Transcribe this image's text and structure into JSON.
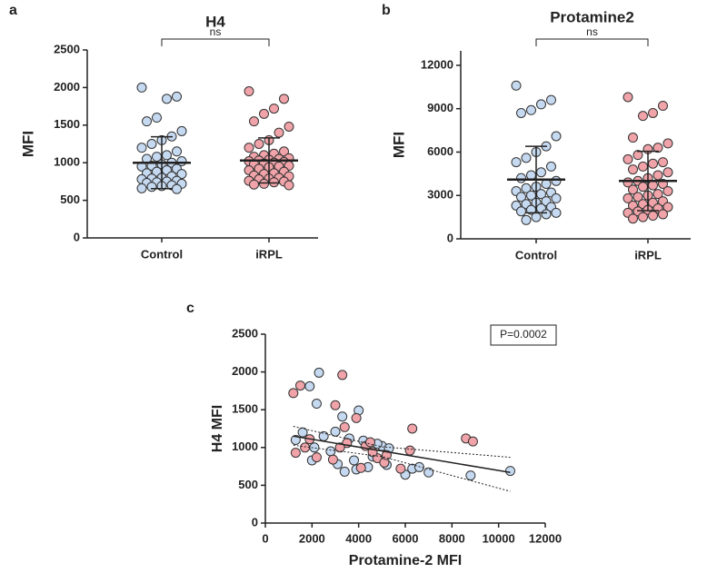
{
  "chart_data": [
    {
      "type": "dotplot",
      "panel": "a",
      "title": "H4",
      "ylabel": "MFI",
      "annotation": "ns",
      "categories": [
        "Control",
        "iRPL"
      ],
      "groups": [
        {
          "color": "#c5d9f1",
          "mean": 1000,
          "sd": 345,
          "values": [
            2000,
            1880,
            1850,
            1600,
            1550,
            1420,
            1350,
            1300,
            1250,
            1200,
            1150,
            1100,
            1080,
            1050,
            1020,
            1000,
            980,
            960,
            950,
            920,
            900,
            880,
            860,
            850,
            820,
            800,
            790,
            780,
            760,
            750,
            740,
            730,
            720,
            700,
            690,
            680,
            660,
            650
          ]
        },
        {
          "color": "#f0a3a8",
          "mean": 1030,
          "sd": 300,
          "values": [
            1950,
            1850,
            1720,
            1650,
            1550,
            1480,
            1400,
            1300,
            1250,
            1200,
            1150,
            1120,
            1100,
            1080,
            1060,
            1050,
            1040,
            1030,
            1020,
            1010,
            1000,
            990,
            980,
            960,
            950,
            940,
            920,
            900,
            880,
            860,
            850,
            830,
            820,
            800,
            790,
            780,
            760,
            750,
            740,
            720,
            710,
            700
          ]
        }
      ],
      "ylim": [
        0,
        2500
      ],
      "yticks": [
        0,
        500,
        1000,
        1500,
        2000,
        2500
      ]
    },
    {
      "type": "dotplot",
      "panel": "b",
      "title": "Protamine2",
      "ylabel": "MFI",
      "annotation": "ns",
      "categories": [
        "Control",
        "iRPL"
      ],
      "groups": [
        {
          "color": "#c5d9f1",
          "mean": 4100,
          "sd": 2300,
          "values": [
            10600,
            9600,
            9300,
            8900,
            8700,
            7100,
            6400,
            6000,
            5600,
            5300,
            5000,
            4600,
            4400,
            4200,
            4000,
            3800,
            3600,
            3500,
            3300,
            3200,
            3100,
            3000,
            2900,
            2800,
            2600,
            2500,
            2400,
            2300,
            2200,
            2100,
            2000,
            1900,
            1800,
            1700,
            1500,
            1300
          ]
        },
        {
          "color": "#f0a3a8",
          "mean": 4000,
          "sd": 2050,
          "values": [
            9800,
            9200,
            8700,
            8500,
            7000,
            6600,
            6300,
            6200,
            5800,
            5500,
            5300,
            5200,
            5000,
            4800,
            4600,
            4400,
            4200,
            4000,
            3900,
            3800,
            3700,
            3600,
            3400,
            3300,
            3100,
            3000,
            2900,
            2800,
            2600,
            2500,
            2400,
            2300,
            2200,
            2100,
            2000,
            1900,
            1800,
            1700,
            1600,
            1500,
            1400
          ]
        }
      ],
      "ylim": [
        0,
        13000
      ],
      "yticks": [
        0,
        3000,
        6000,
        9000,
        12000
      ]
    },
    {
      "type": "scatter",
      "panel": "c",
      "xlabel": "Protamine-2 MFI",
      "ylabel": "H4 MFI",
      "annotation": "P=0.0002",
      "series": [
        {
          "color": "#c5d9f1",
          "x": [
            1300,
            1600,
            1900,
            2100,
            2300,
            2200,
            2500,
            2800,
            3000,
            3100,
            3300,
            3400,
            3600,
            3800,
            4000,
            4200,
            4400,
            4600,
            5000,
            5200,
            5300,
            6000,
            6300,
            6600,
            7000,
            8800,
            10500,
            4800,
            2000,
            3900
          ],
          "values": [
            1100,
            1200,
            1810,
            1000,
            1990,
            1580,
            1150,
            950,
            1210,
            780,
            1410,
            680,
            1120,
            830,
            1490,
            1090,
            740,
            880,
            1020,
            770,
            990,
            640,
            720,
            740,
            670,
            630,
            690,
            1050,
            830,
            710
          ]
        },
        {
          "color": "#f0a3a8",
          "x": [
            1200,
            1500,
            1300,
            1700,
            1900,
            2200,
            3000,
            3300,
            3400,
            3500,
            3900,
            4100,
            4300,
            4500,
            4800,
            5100,
            5200,
            5800,
            6200,
            6300,
            8600,
            8900,
            3200,
            2900,
            4600
          ],
          "values": [
            1720,
            1820,
            930,
            1000,
            1110,
            870,
            1560,
            1960,
            1270,
            1060,
            1390,
            730,
            1020,
            1070,
            860,
            800,
            900,
            720,
            960,
            1250,
            1120,
            1080,
            1000,
            840,
            940
          ]
        }
      ],
      "lines": [
        {
          "style": "solid",
          "x": [
            1200,
            10500
          ],
          "values": [
            1150,
            670
          ]
        },
        {
          "style": "dotted",
          "x": [
            1200,
            5000,
            10500
          ],
          "values": [
            1280,
            1010,
            870
          ]
        },
        {
          "style": "dotted",
          "x": [
            1200,
            5000,
            10500
          ],
          "values": [
            1030,
            880,
            420
          ]
        }
      ],
      "xlim": [
        0,
        12000
      ],
      "xticks": [
        0,
        2000,
        4000,
        6000,
        8000,
        10000,
        12000
      ],
      "ylim": [
        0,
        2500
      ],
      "yticks": [
        0,
        500,
        1000,
        1500,
        2000,
        2500
      ]
    }
  ]
}
